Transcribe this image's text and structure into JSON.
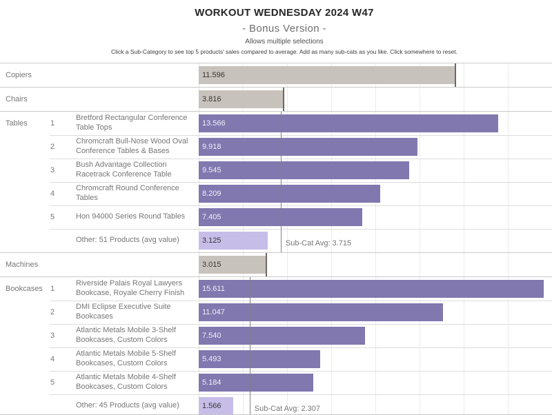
{
  "header": {
    "title": "WORKOUT WEDNESDAY 2024 W47",
    "subtitle": "- Bonus Version -",
    "note1": "Allows multiple selections",
    "note2": "Click a Sub-Category to see top 5 products' sales compared to average. Add as many sub-cats as you like. Click somewhere to reset."
  },
  "colors": {
    "category_bar": "#c8c2bc",
    "product_bar": "#8078af",
    "other_bar": "#c7bde9",
    "reference_line": "#828282",
    "bar_end_line": "#6d6863",
    "gridline": "#ececec",
    "value_text_dark": "#3a3632",
    "value_text_light": "#f1f0f7",
    "label_text": "#767676"
  },
  "chart_data": {
    "type": "bar",
    "orientation": "horizontal",
    "title": "WORKOUT WEDNESDAY 2024 W47",
    "subtitle": "- Bonus Version -",
    "xlabel": "",
    "ylabel": "",
    "xlim": [
      0,
      16
    ],
    "gridline_step": 2,
    "grid": true,
    "legend": false,
    "groups": [
      {
        "category": "Copiers",
        "expanded": false,
        "value": 11.596,
        "value_label": "11.596"
      },
      {
        "category": "Chairs",
        "expanded": false,
        "value": 3.816,
        "value_label": "3.816"
      },
      {
        "category": "Tables",
        "expanded": true,
        "subcat_avg": 3.715,
        "subcat_avg_label": "Sub-Cat Avg: 3.715",
        "rows": [
          {
            "rank": "1",
            "label": "Bretford Rectangular Conference Table Tops",
            "value": 13.566,
            "value_label": "13.566",
            "is_other": false
          },
          {
            "rank": "2",
            "label": "Chromcraft Bull-Nose Wood Oval Conference Tables & Bases",
            "value": 9.918,
            "value_label": "9.918",
            "is_other": false
          },
          {
            "rank": "3",
            "label": "Bush Advantage Collection Racetrack Conference Table",
            "value": 9.545,
            "value_label": "9.545",
            "is_other": false
          },
          {
            "rank": "4",
            "label": "Chromcraft Round Conference Tables",
            "value": 8.209,
            "value_label": "8.209",
            "is_other": false
          },
          {
            "rank": "5",
            "label": "Hon 94000 Series Round Tables",
            "value": 7.405,
            "value_label": "7.405",
            "is_other": false
          },
          {
            "rank": "",
            "label": "Other: 51 Products (avg value)",
            "value": 3.125,
            "value_label": "3.125",
            "is_other": true
          }
        ]
      },
      {
        "category": "Machines",
        "expanded": false,
        "value": 3.015,
        "value_label": "3.015"
      },
      {
        "category": "Bookcases",
        "expanded": true,
        "subcat_avg": 2.307,
        "subcat_avg_label": "Sub-Cat Avg: 2.307",
        "rows": [
          {
            "rank": "1",
            "label": "Riverside Palais Royal Lawyers Bookcase, Royale Cherry Finish",
            "value": 15.611,
            "value_label": "15.611",
            "is_other": false
          },
          {
            "rank": "2",
            "label": "DMI Eclipse Executive Suite Bookcases",
            "value": 11.047,
            "value_label": "11.047",
            "is_other": false
          },
          {
            "rank": "3",
            "label": "Atlantic Metals Mobile 3-Shelf Bookcases, Custom Colors",
            "value": 7.54,
            "value_label": "7.540",
            "is_other": false
          },
          {
            "rank": "4",
            "label": "Atlantic Metals Mobile 5-Shelf Bookcases, Custom Colors",
            "value": 5.493,
            "value_label": "5.493",
            "is_other": false
          },
          {
            "rank": "5",
            "label": "Atlantic Metals Mobile 4-Shelf Bookcases, Custom Colors",
            "value": 5.184,
            "value_label": "5.184",
            "is_other": false
          },
          {
            "rank": "",
            "label": "Other: 45 Products (avg value)",
            "value": 1.566,
            "value_label": "1.566",
            "is_other": true
          }
        ]
      }
    ]
  }
}
